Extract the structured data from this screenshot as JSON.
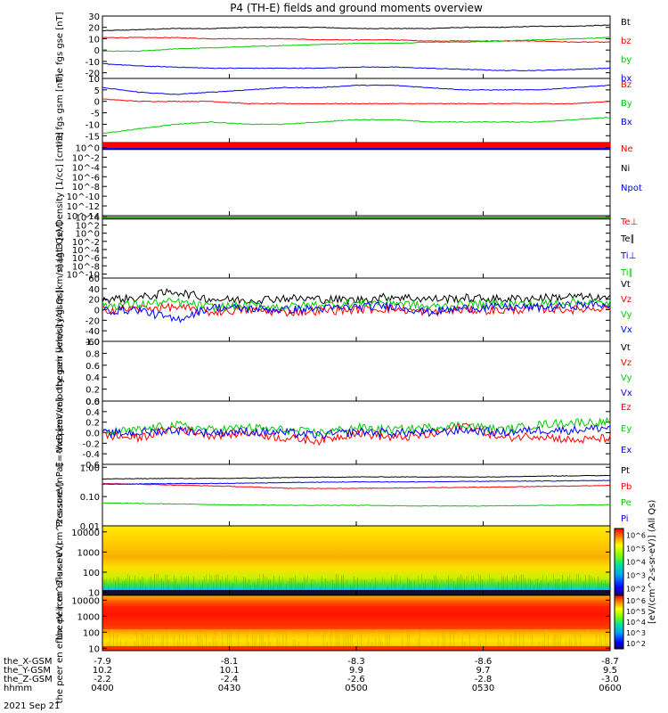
{
  "title": "P4 (TH-E) fields and ground moments overview",
  "date_label": "2021 Sep 21",
  "colorbar": {
    "label": "[eV/(cm^2-s-sr-eV)] (All Qs)",
    "ticks": [
      "10^2",
      "10^3",
      "10^4",
      "10^5",
      "10^6"
    ]
  },
  "ephemeris": {
    "row_labels": [
      "the_X-GSM",
      "the_Y-GSM",
      "the_Z-GSM",
      "hhmm"
    ],
    "columns": [
      {
        "x": "-7.9",
        "y": "10.2",
        "z": "-2.2",
        "t": "0400"
      },
      {
        "x": "-8.1",
        "y": "10.1",
        "z": "-2.4",
        "t": "0430"
      },
      {
        "x": "-8.3",
        "y": "9.9",
        "z": "-2.6",
        "t": "0500"
      },
      {
        "x": "-8.6",
        "y": "9.7",
        "z": "-2.8",
        "t": "0530"
      },
      {
        "x": "-8.7",
        "y": "9.5",
        "z": "-3.0",
        "t": "0600"
      }
    ]
  },
  "chart_data": [
    {
      "type": "line",
      "ylabel": "the fgs gse [nT]",
      "ylim": [
        -25,
        30
      ],
      "yticks": [
        "30",
        "20",
        "10",
        "0",
        "-10",
        "-20"
      ],
      "ytick_values": [
        30,
        20,
        10,
        0,
        -10,
        -20
      ],
      "legend": [
        {
          "name": "Bt",
          "color": "#000000"
        },
        {
          "name": "bz",
          "color": "#ff0000"
        },
        {
          "name": "by",
          "color": "#00cc00"
        },
        {
          "name": "bx",
          "color": "#0000ff"
        }
      ],
      "series": [
        {
          "name": "Bt",
          "color": "#000000",
          "values": [
            17,
            18,
            19,
            19,
            20,
            20,
            20,
            19,
            19,
            19,
            20,
            20,
            21,
            21,
            22
          ]
        },
        {
          "name": "bz",
          "color": "#ff0000",
          "values": [
            11,
            11,
            11,
            10,
            10,
            10,
            9,
            9,
            9,
            8,
            8,
            8,
            8,
            7,
            7
          ]
        },
        {
          "name": "by",
          "color": "#00cc00",
          "values": [
            -1,
            -1,
            1,
            2,
            3,
            4,
            5,
            6,
            6,
            7,
            7,
            8,
            9,
            10,
            11
          ]
        },
        {
          "name": "bx",
          "color": "#0000ff",
          "values": [
            -12,
            -14,
            -15,
            -16,
            -16,
            -16,
            -16,
            -15,
            -15,
            -16,
            -17,
            -18,
            -18,
            -17,
            -16
          ]
        }
      ]
    },
    {
      "type": "line",
      "ylabel": "the fgs gsm [nT]",
      "ylim": [
        -18,
        10
      ],
      "yticks": [
        "10",
        "5",
        "0",
        "-5",
        "-10",
        "-15"
      ],
      "ytick_values": [
        10,
        5,
        0,
        -5,
        -10,
        -15
      ],
      "legend": [
        {
          "name": "Bz",
          "color": "#ff0000"
        },
        {
          "name": "By",
          "color": "#00cc00"
        },
        {
          "name": "Bx",
          "color": "#0000ff"
        }
      ],
      "series": [
        {
          "name": "Bz",
          "color": "#ff0000",
          "values": [
            1,
            0,
            0,
            0,
            -1,
            -1,
            -1,
            -1,
            -1,
            -1,
            -1,
            -1,
            -1,
            -1,
            0
          ]
        },
        {
          "name": "By",
          "color": "#00cc00",
          "values": [
            -14,
            -12,
            -10,
            -9,
            -10,
            -10,
            -9,
            -8,
            -8,
            -9,
            -9,
            -9,
            -9,
            -8,
            -7
          ]
        },
        {
          "name": "Bx",
          "color": "#0000ff",
          "values": [
            6,
            4,
            3,
            4,
            5,
            6,
            6,
            7,
            7,
            6,
            5,
            5,
            5,
            6,
            7
          ]
        }
      ]
    },
    {
      "type": "line",
      "ylabel": "Density [1/cc] [cm-3]",
      "ylim": [
        -14,
        1
      ],
      "log": true,
      "yticks": [
        "10^0",
        "10^-2",
        "10^-4",
        "10^-6",
        "10^-8",
        "10^-10",
        "10^-12",
        "10^-14"
      ],
      "ytick_values": [
        0,
        -2,
        -4,
        -6,
        -8,
        -10,
        -12,
        -14
      ],
      "legend": [
        {
          "name": "Ne",
          "color": "#ff0000"
        },
        {
          "name": "Ni",
          "color": "#000000"
        },
        {
          "name": "Npot",
          "color": "#0000ff"
        }
      ],
      "series": [
        {
          "name": "Ne",
          "color": "#ff0000",
          "values": [
            -0.3,
            -0.3,
            -0.3,
            -0.3,
            -0.3,
            -0.3,
            -0.3,
            -0.3
          ]
        },
        {
          "name": "Ni",
          "color": "#000000",
          "values": [
            -0.4,
            -0.4,
            -0.4,
            -0.4,
            -0.4,
            -0.4,
            -0.4,
            -0.4
          ]
        },
        {
          "name": "Npot",
          "color": "#0000ff",
          "values": [
            -0.2,
            -0.2,
            -0.2,
            -0.2,
            -0.2,
            -0.2,
            -0.2,
            -0.2
          ]
        }
      ]
    },
    {
      "type": "line",
      "ylabel": "magt3 [eV]",
      "ylim": [
        -11,
        4.3
      ],
      "log": true,
      "yticks": [
        "10^4",
        "10^2",
        "10^0",
        "10^-2",
        "10^-4",
        "10^-6",
        "10^-8",
        "10^-10"
      ],
      "ytick_values": [
        4,
        2,
        0,
        -2,
        -4,
        -6,
        -8,
        -10
      ],
      "legend": [
        {
          "name": "Te⊥",
          "color": "#ff0000"
        },
        {
          "name": "Te∥",
          "color": "#000000"
        },
        {
          "name": "Ti⊥",
          "color": "#0000ff"
        },
        {
          "name": "Ti∥",
          "color": "#00cc00"
        }
      ],
      "series": [
        {
          "name": "Te⊥",
          "color": "#ff0000",
          "values": [
            3.6,
            3.6,
            3.6,
            3.6,
            3.6,
            3.6
          ]
        },
        {
          "name": "Te∥",
          "color": "#000000",
          "values": [
            3.5,
            3.5,
            3.5,
            3.5,
            3.5,
            3.5
          ]
        },
        {
          "name": "Ti⊥",
          "color": "#0000ff",
          "values": [
            3.9,
            3.9,
            3.9,
            3.9,
            3.9,
            3.9
          ]
        },
        {
          "name": "Ti∥",
          "color": "#00cc00",
          "values": [
            3.8,
            3.8,
            3.8,
            3.8,
            3.8,
            3.8
          ]
        }
      ]
    },
    {
      "type": "line",
      "ylabel": "the peir velocity gsm [km/s] (All Qs)",
      "ylim": [
        -60,
        60
      ],
      "yticks": [
        "60",
        "40",
        "20",
        "0",
        "-20",
        "-40",
        "-60"
      ],
      "ytick_values": [
        60,
        40,
        20,
        0,
        -20,
        -40,
        -60
      ],
      "legend": [
        {
          "name": "Vt",
          "color": "#000000"
        },
        {
          "name": "Vz",
          "color": "#ff0000"
        },
        {
          "name": "Vy",
          "color": "#00cc00"
        },
        {
          "name": "Vx",
          "color": "#0000ff"
        }
      ],
      "series": [
        {
          "name": "Vt",
          "color": "#000000",
          "values": [
            20,
            22,
            35,
            20,
            18,
            22,
            20,
            18,
            25,
            20,
            22,
            20,
            22,
            25,
            20
          ]
        },
        {
          "name": "Vz",
          "color": "#ff0000",
          "values": [
            0,
            2,
            5,
            -5,
            0,
            -5,
            -2,
            0,
            2,
            -5,
            0,
            -2,
            2,
            0,
            5
          ]
        },
        {
          "name": "Vy",
          "color": "#00cc00",
          "values": [
            8,
            10,
            15,
            5,
            8,
            5,
            10,
            12,
            15,
            5,
            10,
            12,
            10,
            15,
            12
          ]
        },
        {
          "name": "Vx",
          "color": "#0000ff",
          "values": [
            -2,
            0,
            -20,
            5,
            2,
            0,
            2,
            5,
            8,
            -5,
            3,
            5,
            4,
            8,
            10
          ]
        }
      ]
    },
    {
      "type": "line",
      "ylabel": "the peer velocity gsm [km/s] (All Qs)",
      "ylim": [
        0,
        1
      ],
      "yticks": [
        "1.0",
        "0.8",
        "0.6",
        "0.4",
        "0.2",
        "0.0"
      ],
      "ytick_values": [
        1.0,
        0.8,
        0.6,
        0.4,
        0.2,
        0.0
      ],
      "legend": [
        {
          "name": "Vt",
          "color": "#000000"
        },
        {
          "name": "Vz",
          "color": "#ff0000"
        },
        {
          "name": "Vy",
          "color": "#00cc00"
        },
        {
          "name": "Vx",
          "color": "#0000ff"
        }
      ],
      "series": []
    },
    {
      "type": "line",
      "ylabel": "E=-VxB [mV/m]",
      "ylim": [
        -0.6,
        0.6
      ],
      "yticks": [
        "0.6",
        "0.4",
        "0.2",
        "0.0",
        "-0.2",
        "-0.4",
        "-0.6"
      ],
      "ytick_values": [
        0.6,
        0.4,
        0.2,
        0.0,
        -0.2,
        -0.4,
        -0.6
      ],
      "legend": [
        {
          "name": "Ez",
          "color": "#ff0000"
        },
        {
          "name": "Ey",
          "color": "#00cc00"
        },
        {
          "name": "Ex",
          "color": "#0000ff"
        }
      ],
      "series": [
        {
          "name": "Ez",
          "color": "#ff0000",
          "values": [
            -0.05,
            -0.1,
            0.1,
            -0.05,
            0.0,
            -0.1,
            -0.15,
            0.0,
            -0.1,
            -0.05,
            0.15,
            -0.1,
            -0.05,
            -0.15,
            -0.1
          ]
        },
        {
          "name": "Ey",
          "color": "#00cc00",
          "values": [
            0.0,
            0.05,
            0.15,
            0.05,
            0.1,
            0.05,
            0.0,
            0.1,
            0.05,
            0.1,
            0.15,
            0.05,
            0.15,
            0.2,
            0.2
          ]
        },
        {
          "name": "Ex",
          "color": "#0000ff",
          "values": [
            -0.02,
            0.0,
            0.05,
            0.0,
            0.02,
            0.0,
            -0.05,
            0.02,
            0.0,
            0.0,
            0.05,
            0.0,
            0.05,
            0.05,
            0.1
          ]
        }
      ]
    },
    {
      "type": "line",
      "ylabel": "Pressure [nPa]",
      "ylim": [
        -2,
        0.1
      ],
      "log": true,
      "yticks": [
        "1.00",
        "0.10",
        "0.01"
      ],
      "ytick_values": [
        0,
        -1,
        -2
      ],
      "legend": [
        {
          "name": "Pt",
          "color": "#000000"
        },
        {
          "name": "Pb",
          "color": "#ff0000"
        },
        {
          "name": "Pe",
          "color": "#00cc00"
        },
        {
          "name": "Pi",
          "color": "#0000ff"
        }
      ],
      "series": [
        {
          "name": "Pt",
          "color": "#000000",
          "values": [
            -0.4,
            -0.38,
            -0.38,
            -0.35,
            -0.33,
            -0.33,
            -0.33,
            -0.3,
            -0.28
          ]
        },
        {
          "name": "Pb",
          "color": "#ff0000",
          "values": [
            -0.55,
            -0.6,
            -0.65,
            -0.72,
            -0.72,
            -0.7,
            -0.68,
            -0.65,
            -0.62
          ]
        },
        {
          "name": "Pe",
          "color": "#00cc00",
          "values": [
            -1.22,
            -1.25,
            -1.28,
            -1.3,
            -1.3,
            -1.32,
            -1.32,
            -1.3,
            -1.28
          ]
        },
        {
          "name": "Pi",
          "color": "#0000ff",
          "values": [
            -0.58,
            -0.56,
            -0.55,
            -0.52,
            -0.5,
            -0.5,
            -0.48,
            -0.47,
            -0.45
          ]
        }
      ]
    },
    {
      "type": "heatmap",
      "ylabel": "the peir en eflux eV (cm^2-s-sr-eV)",
      "log": true,
      "yticks": [
        "10000",
        "1000",
        "100",
        "10"
      ],
      "ytick_values": [
        4,
        3,
        2,
        1
      ],
      "ylim": [
        0.85,
        4.3
      ]
    },
    {
      "type": "heatmap",
      "ylabel": "the peer en eflux eV (cm^2-s-sr-eV)",
      "log": true,
      "yticks": [
        "10000",
        "1000",
        "100",
        "10"
      ],
      "ytick_values": [
        4,
        3,
        2,
        1
      ],
      "ylim": [
        0.85,
        4.3
      ]
    }
  ],
  "colors": {
    "red": "#ff0000",
    "green": "#00cc00",
    "blue": "#0000ff",
    "black": "#000000"
  }
}
